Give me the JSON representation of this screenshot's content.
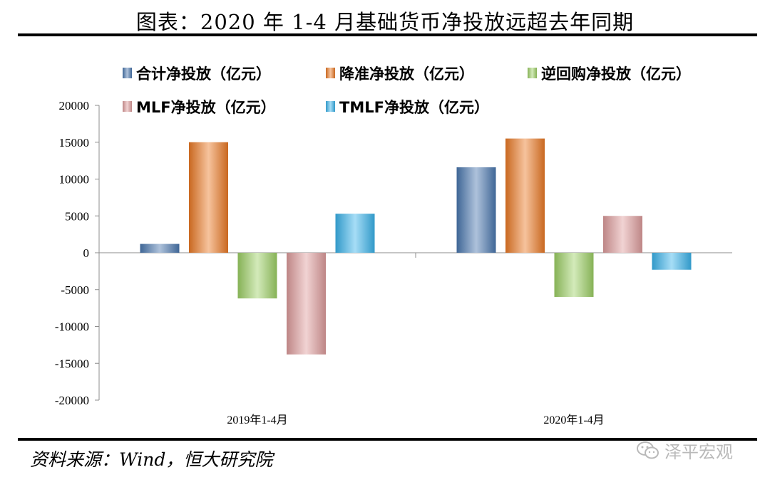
{
  "title": "图表：2020 年 1-4 月基础货币净投放远超去年同期",
  "source": "资料来源：Wind，恒大研究院",
  "watermark": "泽平宏观",
  "colors": {
    "合计净投放（亿元）": "#4a78b0",
    "降准净投放（亿元）": "#ec7a26",
    "逆回购净投放（亿元）": "#9ed165",
    "MLF净投放（亿元）": "#df9e9e",
    "TMLF净投放（亿元）": "#3ab4ec"
  },
  "chart_data": {
    "type": "bar",
    "categories": [
      "2019年1-4月",
      "2020年1-4月"
    ],
    "series": [
      {
        "name": "合计净投放（亿元）",
        "values": [
          1200,
          11600
        ]
      },
      {
        "name": "降准净投放（亿元）",
        "values": [
          15000,
          15500
        ]
      },
      {
        "name": "逆回购净投放（亿元）",
        "values": [
          -6200,
          -6000
        ]
      },
      {
        "name": "MLF净投放（亿元）",
        "values": [
          -13800,
          5000
        ]
      },
      {
        "name": "TMLF净投放（亿元）",
        "values": [
          5300,
          -2300
        ]
      }
    ],
    "ylim": [
      -20000,
      20000
    ],
    "yticks": [
      20000,
      15000,
      10000,
      5000,
      0,
      -5000,
      -10000,
      -15000,
      -20000
    ],
    "legend_position": "top"
  }
}
